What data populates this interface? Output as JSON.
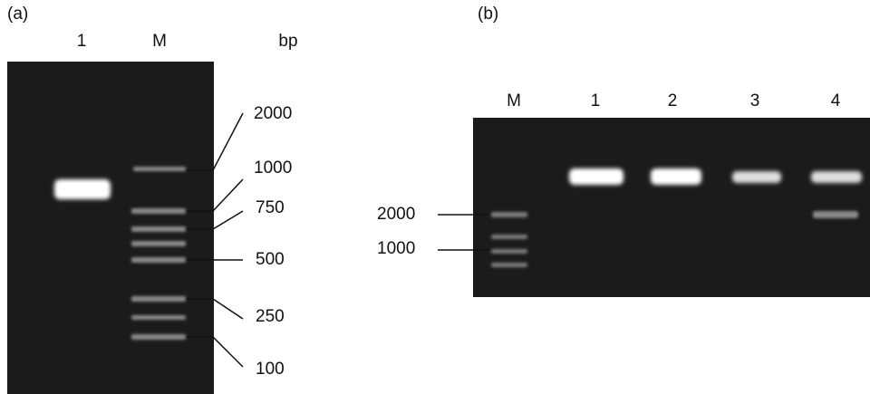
{
  "panel_a": {
    "label": "(a)",
    "lanes": [
      "1",
      "M"
    ],
    "unit": "bp",
    "markers": [
      "2000",
      "1000",
      "750",
      "500",
      "250",
      "100"
    ]
  },
  "panel_b": {
    "label": "(b)",
    "lanes": [
      "M",
      "1",
      "2",
      "3",
      "4"
    ],
    "markers": [
      "2000",
      "1000"
    ]
  }
}
